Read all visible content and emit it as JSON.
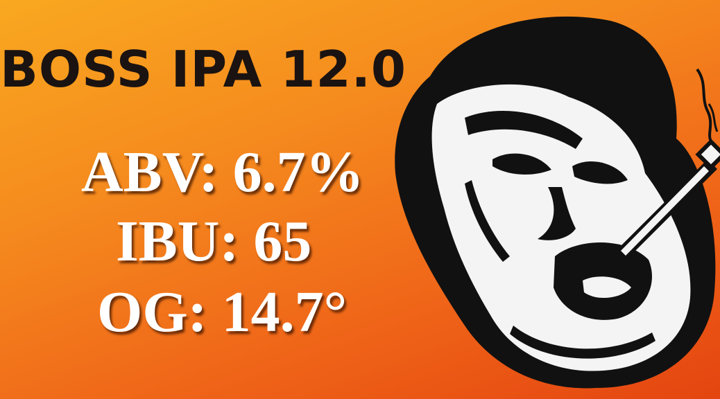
{
  "title": "BOSS IPA 12.0",
  "stats": {
    "abv": "ABV: 6.7%",
    "ibu": "IBU: 65",
    "og": "OG: 14.7°"
  },
  "mascot": {
    "icon": "cigar-face-mascot-icon"
  },
  "colors": {
    "background_top": "#f9a820",
    "background_bottom": "#e44510",
    "title_text": "#1a1311",
    "stats_text": "#ffffff"
  }
}
